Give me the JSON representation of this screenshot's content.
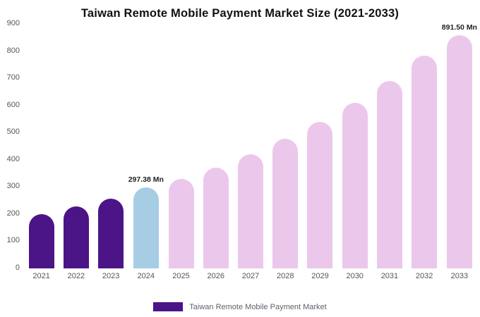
{
  "title": "Taiwan Remote Mobile Payment Market Size (2021-2033)",
  "legend": {
    "label": "Taiwan Remote Mobile Payment Market",
    "swatch_color": "#4b1487"
  },
  "palette": {
    "historical": "#4b1487",
    "current_year": "#a6cde4",
    "forecast": "#ebc8eb"
  },
  "chart_data": {
    "type": "bar",
    "title": "Taiwan Remote Mobile Payment Market Size (2021-2033)",
    "xlabel": "",
    "ylabel": "",
    "ylim": [
      0,
      900
    ],
    "yticks": [
      0,
      100,
      200,
      300,
      400,
      500,
      600,
      700,
      800,
      900
    ],
    "grid": false,
    "legend_position": "bottom",
    "unit": "Mn",
    "categories": [
      "2021",
      "2022",
      "2023",
      "2024",
      "2025",
      "2026",
      "2027",
      "2028",
      "2029",
      "2030",
      "2031",
      "2032",
      "2033"
    ],
    "values": [
      200,
      228,
      258,
      297.38,
      330,
      372,
      420,
      476,
      540,
      610,
      690,
      782,
      891.5
    ],
    "colors": [
      "#4b1487",
      "#4b1487",
      "#4b1487",
      "#a6cde4",
      "#ebc8eb",
      "#ebc8eb",
      "#ebc8eb",
      "#ebc8eb",
      "#ebc8eb",
      "#ebc8eb",
      "#ebc8eb",
      "#ebc8eb",
      "#ebc8eb"
    ],
    "annotations": [
      {
        "category": "2024",
        "text": "297.38 Mn"
      },
      {
        "category": "2033",
        "text": "891.50 Mn"
      }
    ]
  }
}
